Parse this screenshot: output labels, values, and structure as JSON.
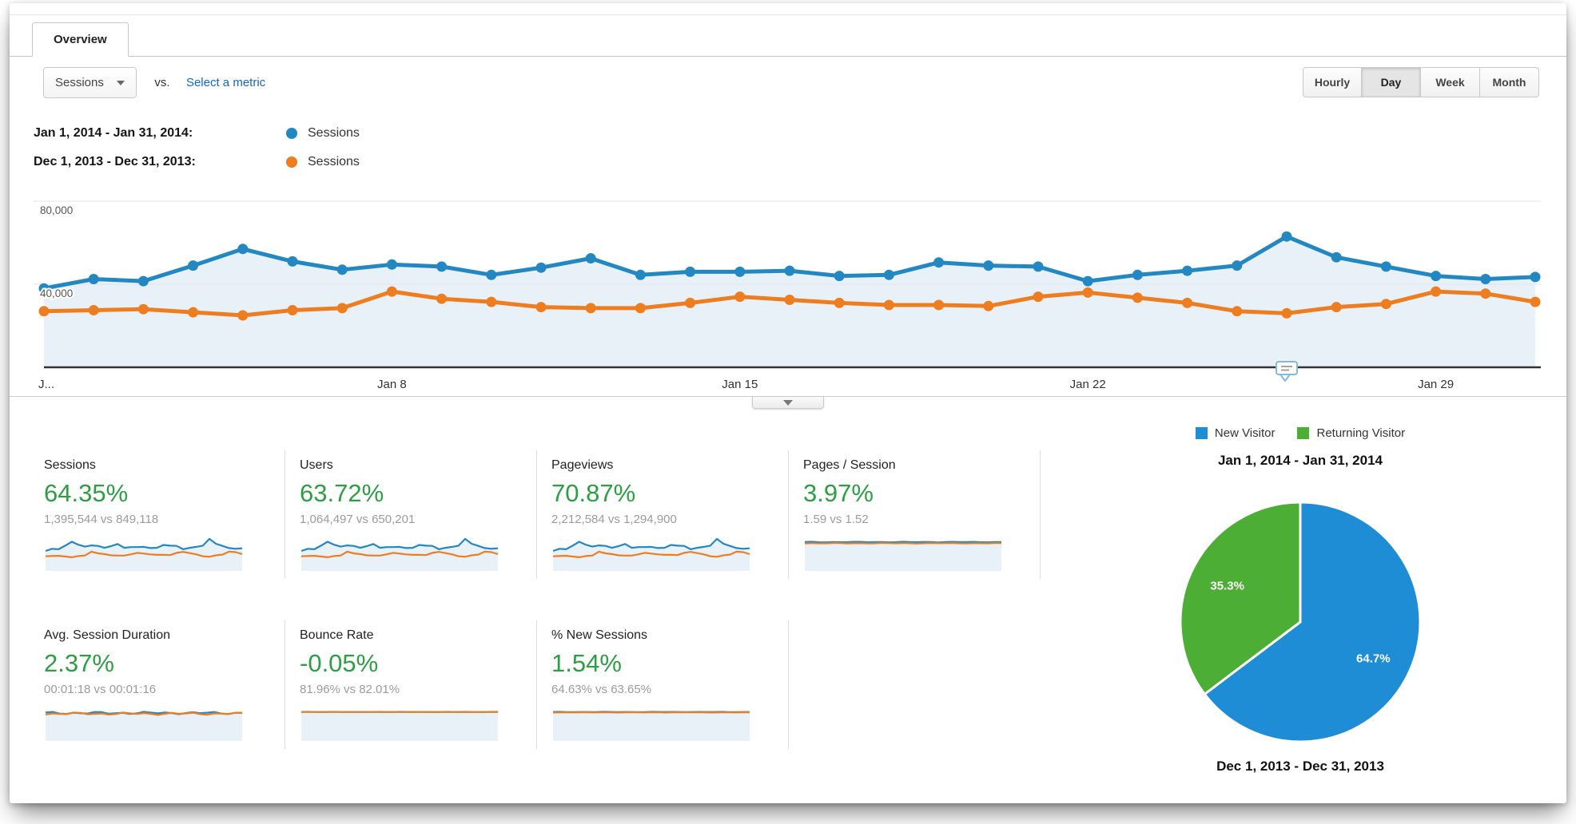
{
  "tab": {
    "label": "Overview"
  },
  "controls": {
    "metric_dropdown": {
      "value": "Sessions"
    },
    "vs_label": "vs.",
    "select_metric_link": "Select a metric",
    "granularity": {
      "options": [
        "Hourly",
        "Day",
        "Week",
        "Month"
      ],
      "active": "Day"
    }
  },
  "legend": [
    {
      "date_range": "Jan 1, 2014 - Jan 31, 2014:",
      "series": "Sessions",
      "color": "#2387c2"
    },
    {
      "date_range": "Dec 1, 2013 - Dec 31, 2013:",
      "series": "Sessions",
      "color": "#ee7d20"
    }
  ],
  "chart_data": [
    {
      "type": "line",
      "title": "Sessions by day, current vs previous period",
      "x_unit": "day",
      "days": 31,
      "series": [
        {
          "name": "Sessions (Jan 1, 2014 - Jan 31, 2014)",
          "color": "#2387c2",
          "values": [
            38000,
            42500,
            41500,
            49000,
            57000,
            51000,
            47000,
            49500,
            48500,
            44500,
            48000,
            52500,
            44500,
            46000,
            46000,
            46500,
            44000,
            44500,
            50500,
            49000,
            48500,
            41500,
            44500,
            46500,
            49000,
            63000,
            53000,
            48500,
            44000,
            42500,
            43500
          ]
        },
        {
          "name": "Sessions (Dec 1, 2013 - Dec 31, 2013)",
          "color": "#ee7d20",
          "values": [
            27000,
            27500,
            28000,
            26500,
            25000,
            27500,
            28500,
            36500,
            33000,
            31500,
            29000,
            28500,
            28500,
            31000,
            34000,
            32500,
            31000,
            30000,
            30000,
            29500,
            34000,
            36000,
            33500,
            31000,
            27000,
            26000,
            29000,
            30500,
            36500,
            35500,
            31500
          ]
        }
      ],
      "ylim": [
        0,
        80000
      ],
      "yticks": [
        {
          "value": 40000,
          "label": "40,000"
        },
        {
          "value": 80000,
          "label": "80,000"
        }
      ],
      "xticks": [
        {
          "day": 1,
          "label": "J..."
        },
        {
          "day": 8,
          "label": "Jan 8"
        },
        {
          "day": 15,
          "label": "Jan 15"
        },
        {
          "day": 22,
          "label": "Jan 22"
        },
        {
          "day": 29,
          "label": "Jan 29"
        }
      ],
      "grid": "horizontal",
      "area_fill": true,
      "annotation_marker": {
        "day": 26
      }
    },
    {
      "type": "pie",
      "start": "12-oclock",
      "direction": "clockwise",
      "slices": [
        {
          "label": "New Visitor",
          "value": 64.7,
          "display_label": "64.7%",
          "color": "#1e8dd5"
        },
        {
          "label": "Returning Visitor",
          "value": 35.3,
          "display_label": "35.3%",
          "color": "#4cae35"
        }
      ]
    }
  ],
  "cards": [
    {
      "title": "Sessions",
      "change": "64.35%",
      "comparison": "1,395,544 vs 849,118",
      "spark": {
        "kind": "series"
      }
    },
    {
      "title": "Users",
      "change": "63.72%",
      "comparison": "1,064,497 vs 650,201",
      "spark": {
        "kind": "series"
      }
    },
    {
      "title": "Pageviews",
      "change": "70.87%",
      "comparison": "2,212,584 vs 1,294,900",
      "spark": {
        "kind": "series"
      }
    },
    {
      "title": "Pages / Session",
      "change": "3.97%",
      "comparison": "1.59 vs 1.52",
      "spark": {
        "kind": "flat",
        "blue": 1.59,
        "orange": 1.52,
        "amp": 0.012
      }
    },
    {
      "title": "Avg. Session Duration",
      "change": "2.37%",
      "comparison": "00:01:18 vs 00:01:16",
      "spark": {
        "kind": "flat",
        "blue": 78,
        "orange": 76,
        "amp": 0.05
      }
    },
    {
      "title": "Bounce Rate",
      "change": "-0.05%",
      "comparison": "81.96% vs 82.01%",
      "spark": {
        "kind": "flat",
        "blue": 81.96,
        "orange": 82.01,
        "amp": 0.004
      }
    },
    {
      "title": "% New Sessions",
      "change": "1.54%",
      "comparison": "64.63% vs 63.65%",
      "spark": {
        "kind": "flat",
        "blue": 64.63,
        "orange": 63.65,
        "amp": 0.006
      }
    }
  ],
  "pie": {
    "legend": [
      {
        "label": "New Visitor",
        "color": "#1e8dd5"
      },
      {
        "label": "Returning Visitor",
        "color": "#4cae35"
      }
    ],
    "title_top": "Jan 1, 2014 - Jan 31, 2014",
    "title_bottom": "Dec 1, 2013 - Dec 31, 2013"
  },
  "colors": {
    "line_blue": "#2387c2",
    "line_orange": "#ee7d20",
    "area_fill": "#e9f1f8",
    "positive_green": "#2e9e44",
    "link_blue": "#1665c1",
    "gridline": "#dfe3e6",
    "axis": "#333333"
  }
}
